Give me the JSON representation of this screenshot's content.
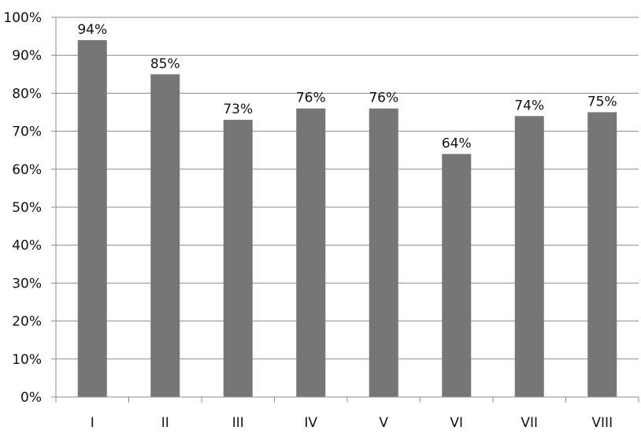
{
  "chart_data": {
    "type": "bar",
    "title": "",
    "xlabel": "",
    "ylabel": "",
    "categories": [
      "I",
      "II",
      "III",
      "IV",
      "V",
      "VI",
      "VII",
      "VIII"
    ],
    "values": [
      94,
      85,
      73,
      76,
      76,
      64,
      74,
      75
    ],
    "data_labels": [
      "94%",
      "85%",
      "73%",
      "76%",
      "76%",
      "64%",
      "74%",
      "75%"
    ],
    "ylim": [
      0,
      100
    ],
    "y_ticks": [
      0,
      10,
      20,
      30,
      40,
      50,
      60,
      70,
      80,
      90,
      100
    ],
    "y_tick_labels": [
      "0%",
      "10%",
      "20%",
      "30%",
      "40%",
      "50%",
      "60%",
      "70%",
      "80%",
      "90%",
      "100%"
    ],
    "grid": true,
    "legend": "none",
    "bar_color": "#767676",
    "grid_color": "#8c8c8c"
  }
}
